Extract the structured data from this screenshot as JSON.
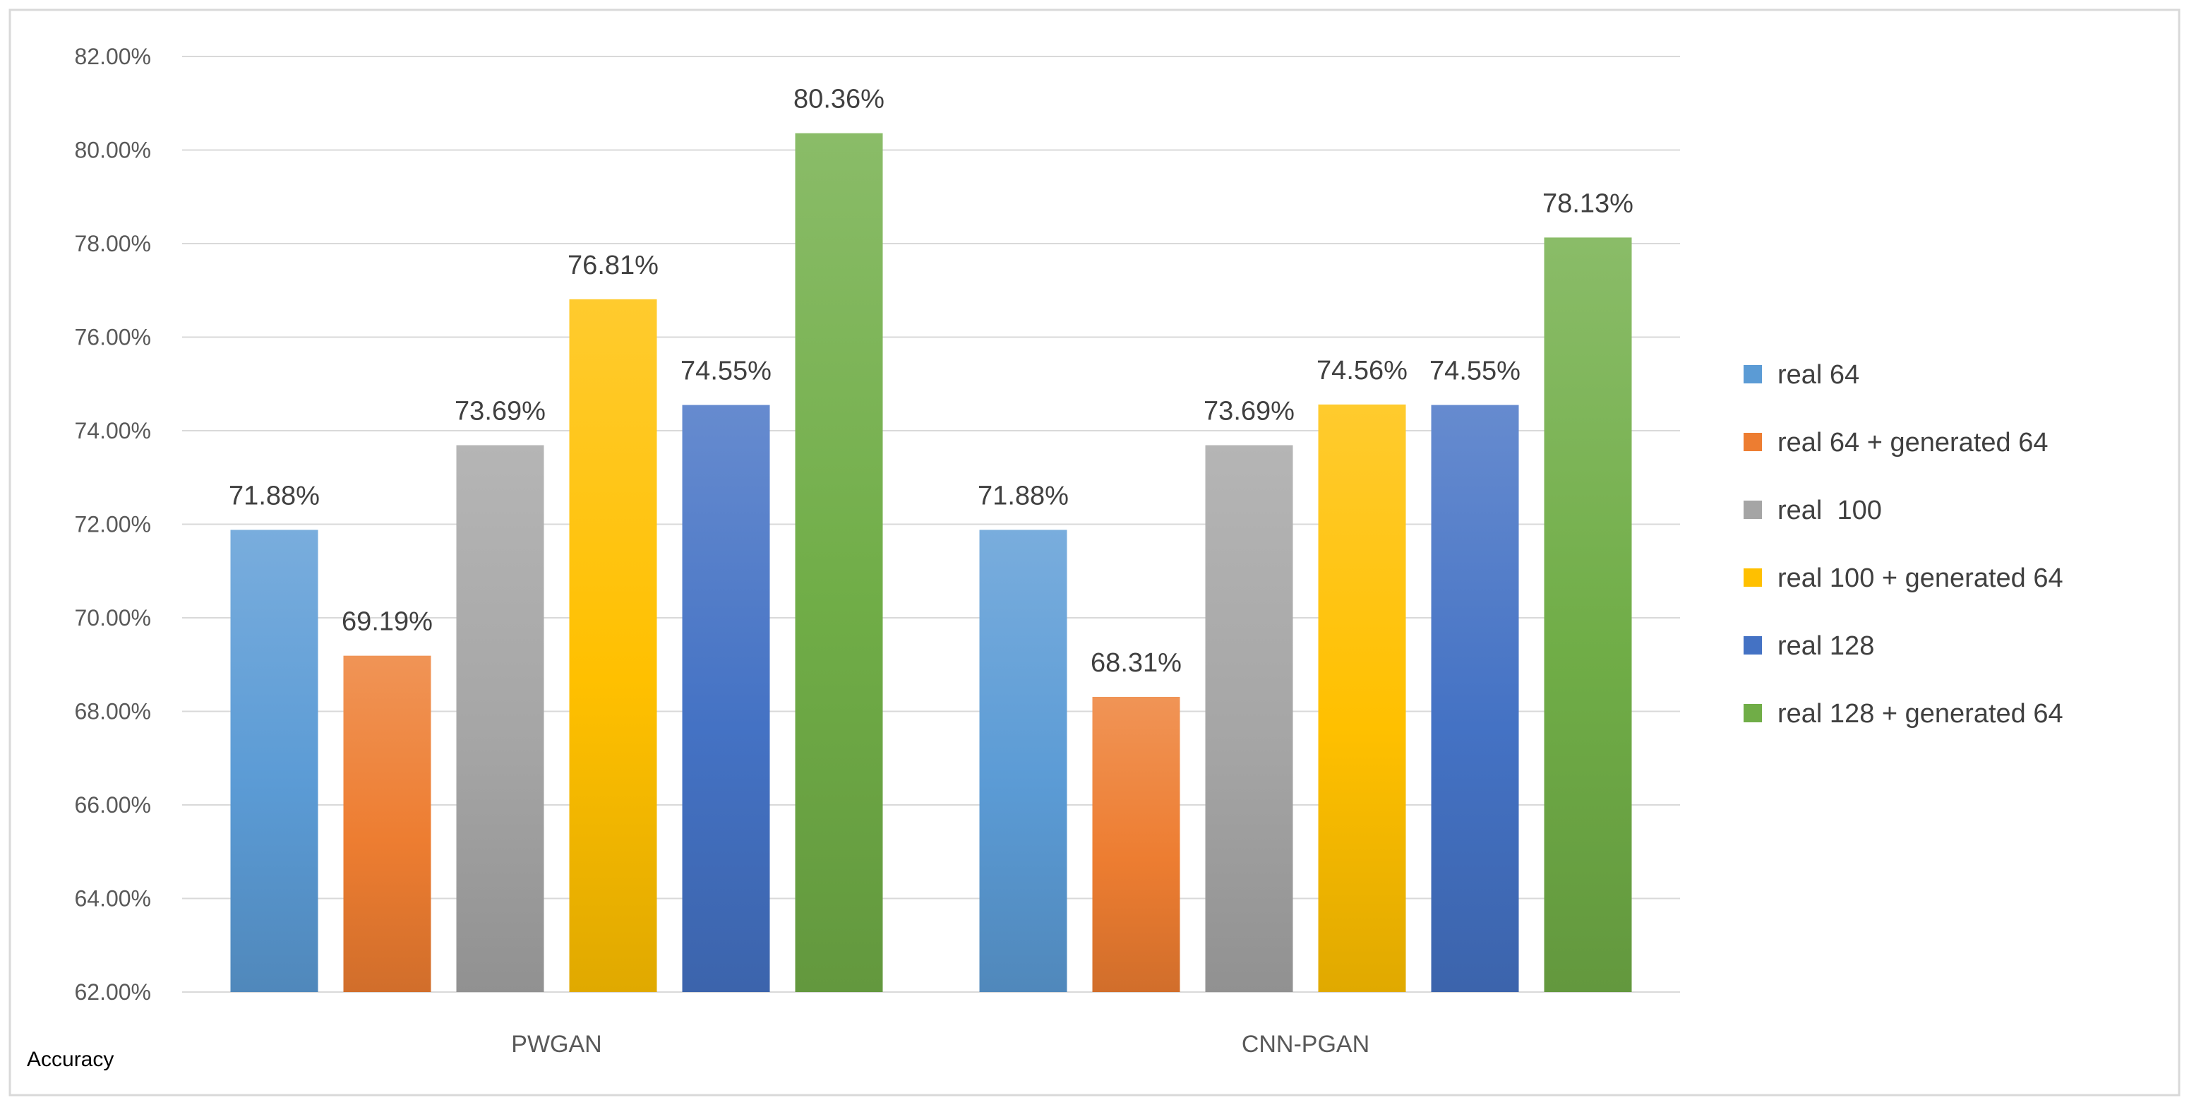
{
  "chart_data": {
    "type": "bar",
    "title": "",
    "xlabel": "",
    "ylabel": "Accuracy",
    "ylim": [
      62,
      82
    ],
    "y_tick_step": 2,
    "y_tick_labels": [
      "62.00%",
      "64.00%",
      "66.00%",
      "68.00%",
      "70.00%",
      "72.00%",
      "74.00%",
      "76.00%",
      "78.00%",
      "80.00%",
      "82.00%"
    ],
    "categories": [
      "PWGAN",
      "CNN-PGAN"
    ],
    "grid": true,
    "legend_position": "right",
    "series": [
      {
        "name": "real 64",
        "values": [
          71.88,
          71.88
        ],
        "labels": [
          "71.88%",
          "71.88%"
        ],
        "color": "#5B9BD5"
      },
      {
        "name": "real 64 + generated 64",
        "values": [
          69.19,
          68.31
        ],
        "labels": [
          "69.19%",
          "68.31%"
        ],
        "color": "#ED7D31"
      },
      {
        "name": "real  100",
        "values": [
          73.69,
          73.69
        ],
        "labels": [
          "73.69%",
          "73.69%"
        ],
        "color": "#A5A5A5"
      },
      {
        "name": "real 100 + generated 64",
        "values": [
          76.81,
          74.56
        ],
        "labels": [
          "76.81%",
          "74.56%"
        ],
        "color": "#FFC000"
      },
      {
        "name": "real 128",
        "values": [
          74.55,
          74.55
        ],
        "labels": [
          "74.55%",
          "74.55%"
        ],
        "color": "#4472C4"
      },
      {
        "name": "real 128 + generated 64",
        "values": [
          80.36,
          78.13
        ],
        "labels": [
          "80.36%",
          "78.13%"
        ],
        "color": "#70AD47"
      }
    ]
  }
}
